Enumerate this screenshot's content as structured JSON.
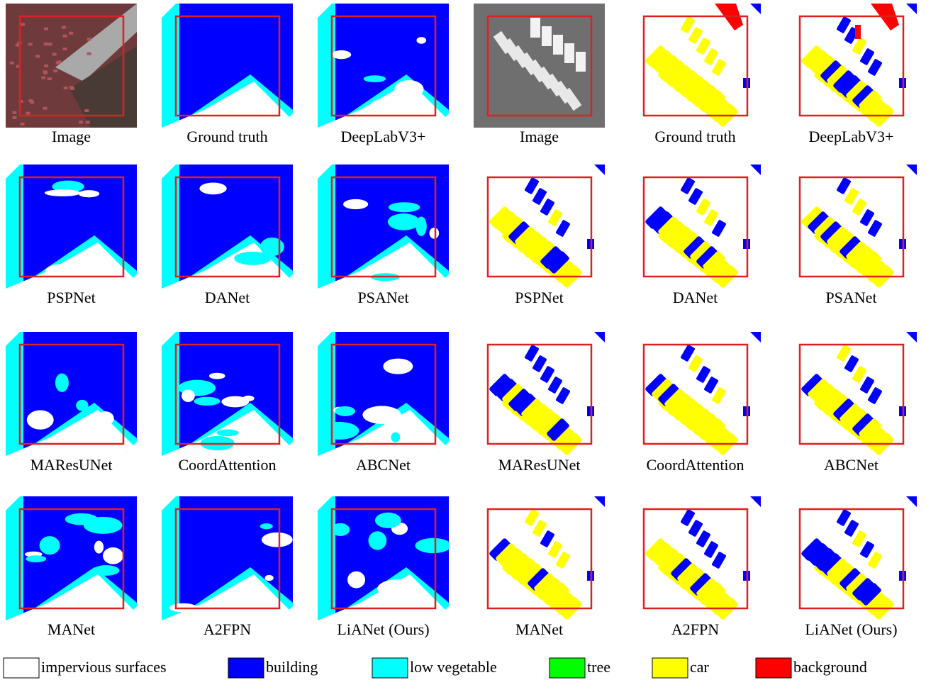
{
  "figure": {
    "panels": [
      {
        "label": "Image"
      },
      {
        "label": "Ground truth"
      },
      {
        "label": "DeepLabV3+"
      },
      {
        "label": "Image"
      },
      {
        "label": "Ground truth"
      },
      {
        "label": "DeepLabV3+"
      },
      {
        "label": "PSPNet"
      },
      {
        "label": "DANet"
      },
      {
        "label": "PSANet"
      },
      {
        "label": "PSPNet"
      },
      {
        "label": "DANet"
      },
      {
        "label": "PSANet"
      },
      {
        "label": "MAResUNet"
      },
      {
        "label": "CoordAttention"
      },
      {
        "label": "ABCNet"
      },
      {
        "label": "MAResUNet"
      },
      {
        "label": "CoordAttention"
      },
      {
        "label": "ABCNet"
      },
      {
        "label": "MANet"
      },
      {
        "label": "A2FPN"
      },
      {
        "label": "LiANet (Ours)"
      },
      {
        "label": "MANet"
      },
      {
        "label": "A2FPN"
      },
      {
        "label": "LiANet (Ours)"
      }
    ],
    "legend": [
      {
        "label": "impervious surfaces",
        "color": "#ffffff"
      },
      {
        "label": "building",
        "color": "#0000ff"
      },
      {
        "label": "low vegetable",
        "color": "#00ffff"
      },
      {
        "label": "tree",
        "color": "#00ff00"
      },
      {
        "label": "car",
        "color": "#ffff00"
      },
      {
        "label": "background",
        "color": "#ff0000"
      }
    ]
  }
}
